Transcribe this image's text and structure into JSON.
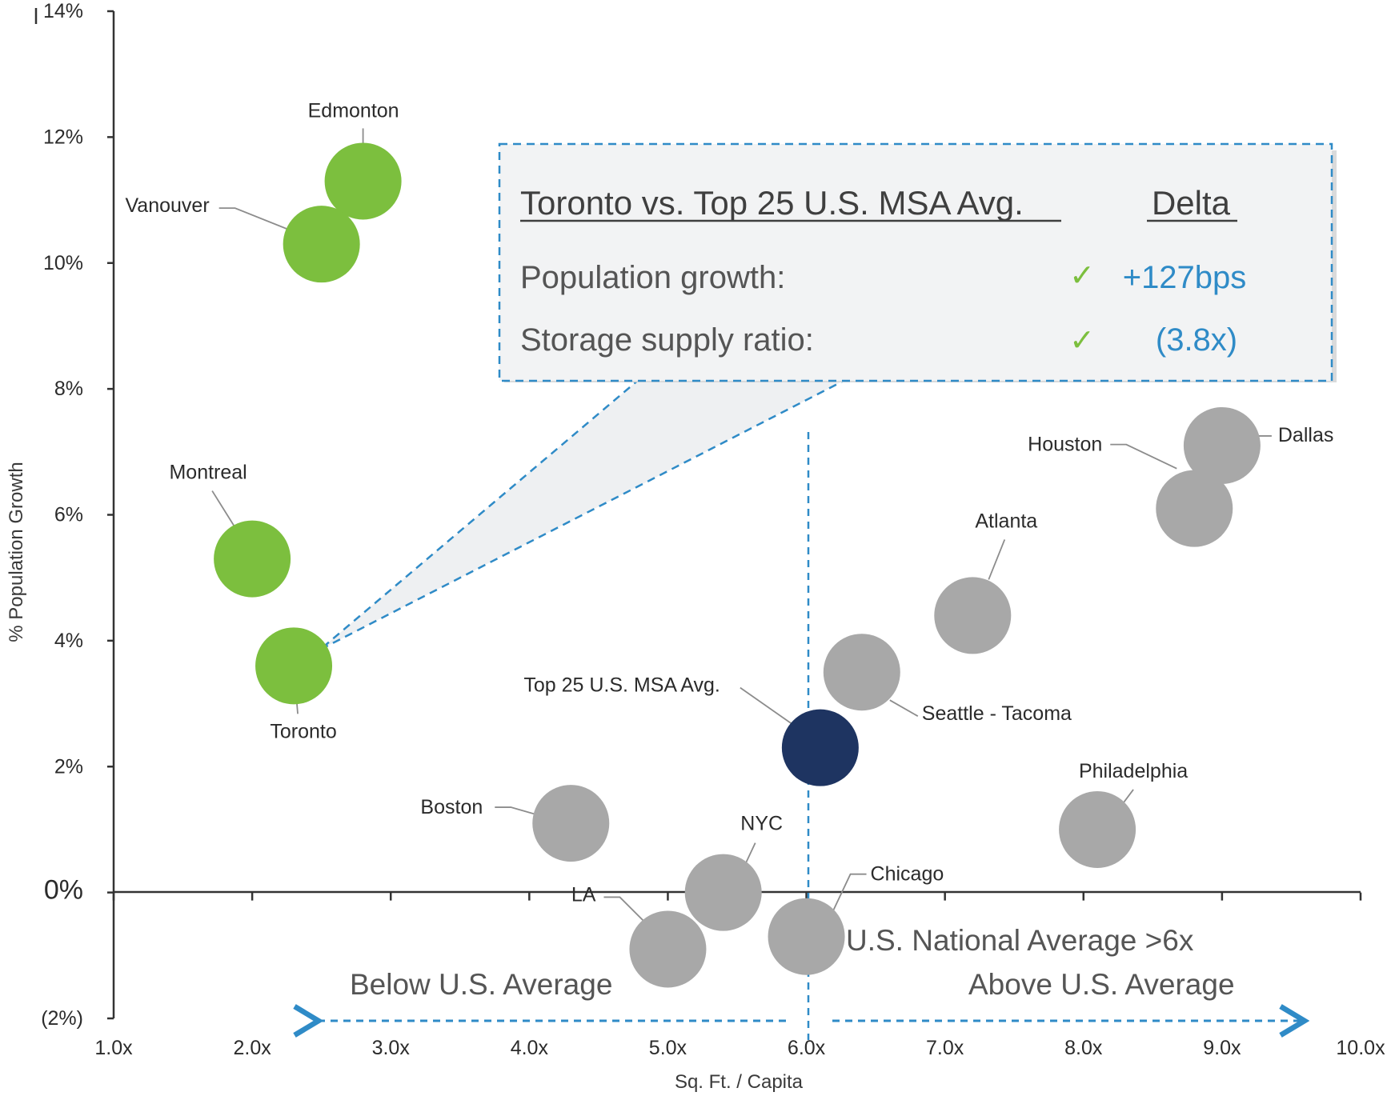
{
  "chart_data": {
    "type": "scatter",
    "title": "",
    "xlabel": "Sq. Ft. / Capita",
    "ylabel": "% Population Growth",
    "xlim": [
      1.0,
      10.0
    ],
    "ylim": [
      -2,
      14
    ],
    "x_tick_labels": [
      "1.0x",
      "2.0x",
      "3.0x",
      "4.0x",
      "5.0x",
      "6.0x",
      "7.0x",
      "8.0x",
      "9.0x",
      "10.0x"
    ],
    "y_ticks": [
      {
        "value": 14,
        "label": "14%"
      },
      {
        "value": 12,
        "label": "12%"
      },
      {
        "value": 10,
        "label": "10%"
      },
      {
        "value": 8,
        "label": "8%"
      },
      {
        "value": 6,
        "label": "6%"
      },
      {
        "value": 4,
        "label": "4%"
      },
      {
        "value": 2,
        "label": "2%"
      },
      {
        "value": 0,
        "label": "0%"
      },
      {
        "value": -2,
        "label": "(2%)"
      }
    ],
    "points": [
      {
        "name": "Edmonton",
        "x": 2.8,
        "y": 11.3,
        "group": "canada"
      },
      {
        "name": "Vanouver",
        "x": 2.5,
        "y": 10.3,
        "group": "canada"
      },
      {
        "name": "Montreal",
        "x": 2.0,
        "y": 5.3,
        "group": "canada"
      },
      {
        "name": "Toronto",
        "x": 2.3,
        "y": 3.6,
        "group": "canada"
      },
      {
        "name": "Top 25 U.S. MSA Avg.",
        "x": 6.1,
        "y": 2.3,
        "group": "average"
      },
      {
        "name": "Boston",
        "x": 4.3,
        "y": 1.1,
        "group": "us"
      },
      {
        "name": "NYC",
        "x": 5.4,
        "y": 0.0,
        "group": "us"
      },
      {
        "name": "LA",
        "x": 5.0,
        "y": -0.9,
        "group": "us"
      },
      {
        "name": "Chicago",
        "x": 6.0,
        "y": -0.7,
        "group": "us"
      },
      {
        "name": "Seattle - Tacoma",
        "x": 6.4,
        "y": 3.5,
        "group": "us"
      },
      {
        "name": "Atlanta",
        "x": 7.2,
        "y": 4.4,
        "group": "us"
      },
      {
        "name": "Philadelphia",
        "x": 8.1,
        "y": 1.0,
        "group": "us"
      },
      {
        "name": "Houston",
        "x": 8.8,
        "y": 6.1,
        "group": "us"
      },
      {
        "name": "Dallas",
        "x": 9.0,
        "y": 7.1,
        "group": "us"
      }
    ],
    "reference_line": {
      "x": 6.0,
      "label": "U.S. National Average >6x"
    },
    "region_labels": {
      "below": "Below U.S. Average",
      "above": "Above U.S. Average"
    },
    "callout": {
      "header_left": "Toronto vs. Top 25 U.S. MSA Avg.",
      "header_right": "Delta",
      "rows": [
        {
          "label": "Population growth:",
          "check": "✓",
          "value": "+127bps"
        },
        {
          "label": "Storage supply ratio:",
          "check": "✓",
          "value": "(3.8x)"
        }
      ]
    }
  },
  "colors": {
    "canada": "#7cbf3e",
    "us": "#a8a8a8",
    "average": "#1e3461",
    "accent": "#2f8bc7",
    "callout_fill": "#f2f3f4"
  }
}
